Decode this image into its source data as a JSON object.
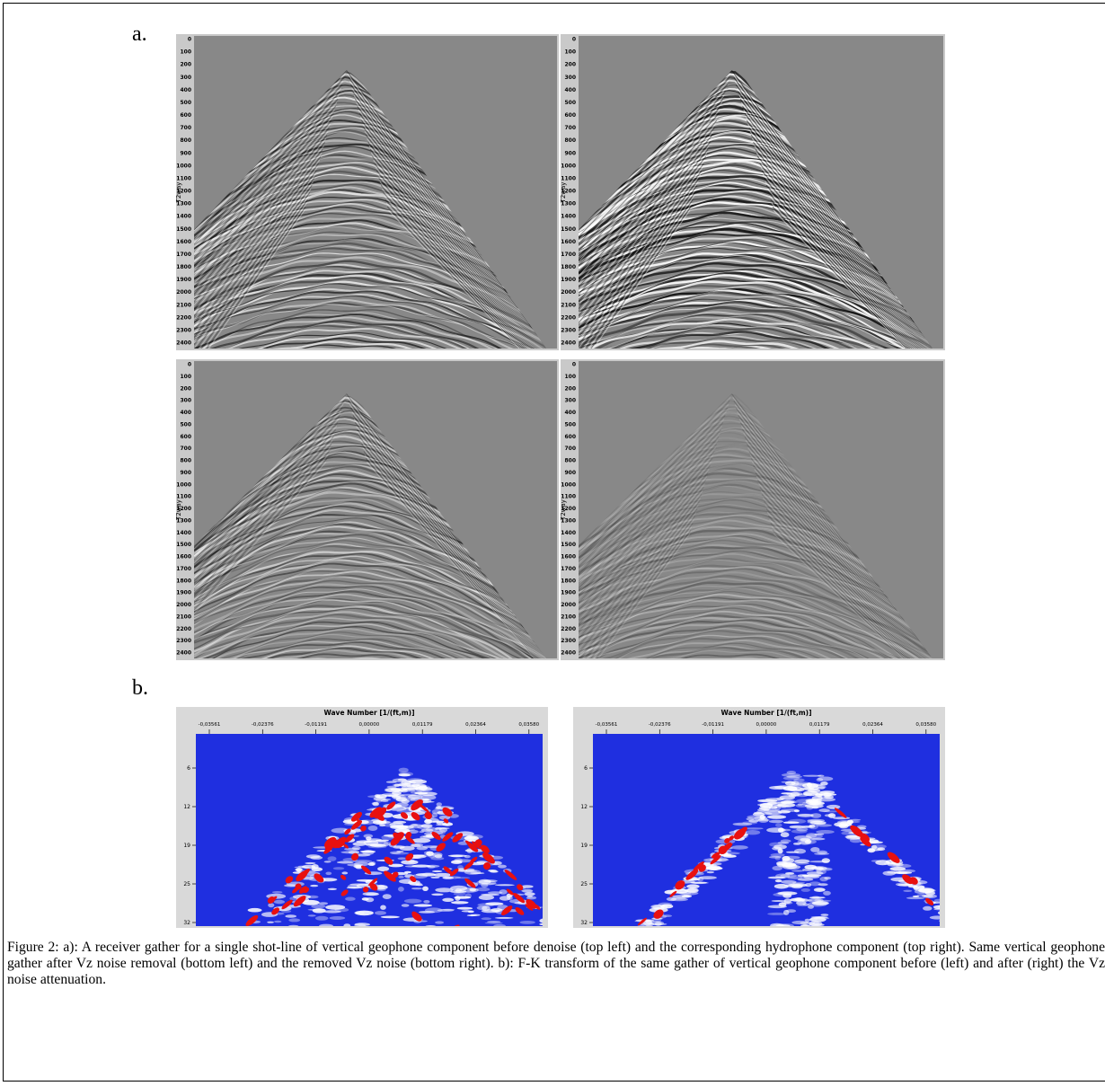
{
  "figure": {
    "panel_a": {
      "label": "a.",
      "y_axis_label": "T2way",
      "y_ticks": [
        0,
        100,
        200,
        300,
        400,
        500,
        600,
        700,
        800,
        900,
        1000,
        1100,
        1200,
        1300,
        1400,
        1500,
        1600,
        1700,
        1800,
        1900,
        2000,
        2100,
        2200,
        2300,
        2400
      ]
    },
    "panel_b": {
      "label": "b.",
      "x_axis_label": "Wave Number [1/(ft,m)]",
      "x_ticks": [
        "-0,03561",
        "-0,02376",
        "-0,01191",
        "0,00000",
        "0,01179",
        "0,02364",
        "0,03580"
      ],
      "y_ticks": [
        6,
        12,
        19,
        25,
        32
      ]
    },
    "caption": "Figure 2: a): A receiver gather for a single shot-line of vertical geophone component before denoise (top left) and the corresponding hydrophone component (top right). Same vertical geophone gather after Vz noise removal (bottom left) and the removed Vz noise (bottom right). b): F-K transform of the same gather of vertical geophone component before (left) and after (right) the Vz noise attenuation."
  }
}
